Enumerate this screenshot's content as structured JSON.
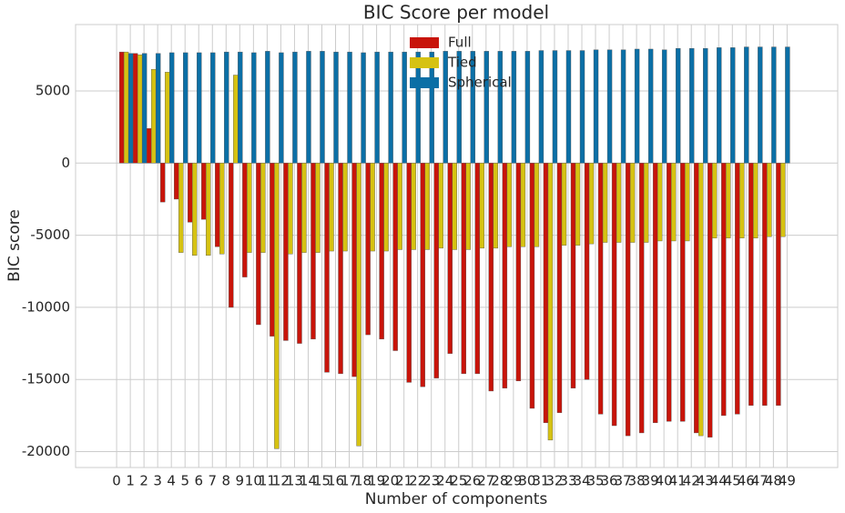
{
  "chart_data": {
    "type": "bar",
    "title": "BIC Score per model",
    "x_label": "Number of components",
    "y_label": "BIC score",
    "categories": [
      "0",
      "1",
      "2",
      "3",
      "4",
      "5",
      "6",
      "7",
      "8",
      "9",
      "10",
      "11",
      "12",
      "13",
      "14",
      "15",
      "16",
      "17",
      "18",
      "19",
      "20",
      "21",
      "22",
      "23",
      "24",
      "25",
      "26",
      "27",
      "28",
      "29",
      "30",
      "31",
      "32",
      "33",
      "34",
      "35",
      "36",
      "37",
      "38",
      "39",
      "40",
      "41",
      "42",
      "43",
      "44",
      "45",
      "46",
      "47",
      "48",
      "49"
    ],
    "series": [
      {
        "name": "Full",
        "color": "#c8140a",
        "values": [
          0,
          7700,
          7600,
          2400,
          -2700,
          -2500,
          -4100,
          -3900,
          -5800,
          -10000,
          -7900,
          -11200,
          -12000,
          -12300,
          -12500,
          -12200,
          -14500,
          -14600,
          -14800,
          -11900,
          -12200,
          -13000,
          -15200,
          -15500,
          -14900,
          -13200,
          -14600,
          -14600,
          -15800,
          -15600,
          -15100,
          -17000,
          -18000,
          -17300,
          -15600,
          -15000,
          -17400,
          -18200,
          -18900,
          -18700,
          -18000,
          -17900,
          -17900,
          -18700,
          -19000,
          -17500,
          -17400,
          -16800,
          -16800,
          -16800
        ]
      },
      {
        "name": "Tied",
        "color": "#d6c212",
        "values": [
          0,
          7700,
          7500,
          6500,
          6300,
          -6200,
          -6400,
          -6400,
          -6300,
          6100,
          -6200,
          -6200,
          -19800,
          -6300,
          -6200,
          -6200,
          -6100,
          -6100,
          -19600,
          -6100,
          -6100,
          -6000,
          -6000,
          -6000,
          -5900,
          -6000,
          -6000,
          -5900,
          -5900,
          -5800,
          -5800,
          -5800,
          -19200,
          -5700,
          -5700,
          -5600,
          -5500,
          -5500,
          -5500,
          -5500,
          -5400,
          -5400,
          -5400,
          -18900,
          -5200,
          -5200,
          -5200,
          -5200,
          -5100,
          -5100
        ]
      },
      {
        "name": "Spherical",
        "color": "#0b6fa6",
        "values": [
          0,
          7600,
          7600,
          7600,
          7650,
          7650,
          7650,
          7650,
          7700,
          7700,
          7650,
          7750,
          7650,
          7700,
          7750,
          7750,
          7700,
          7700,
          7650,
          7700,
          7700,
          7700,
          7700,
          7700,
          7750,
          7750,
          7750,
          7750,
          7750,
          7750,
          7750,
          7800,
          7800,
          7800,
          7800,
          7850,
          7850,
          7850,
          7900,
          7900,
          7850,
          7950,
          7950,
          7950,
          8000,
          8000,
          8050,
          8050,
          8050,
          8050
        ]
      }
    ],
    "ylim": [
      -21100,
      9600
    ],
    "yticks": [
      -20000,
      -15000,
      -10000,
      -5000,
      0,
      5000
    ],
    "grid": true,
    "legend_position": "upper center"
  }
}
